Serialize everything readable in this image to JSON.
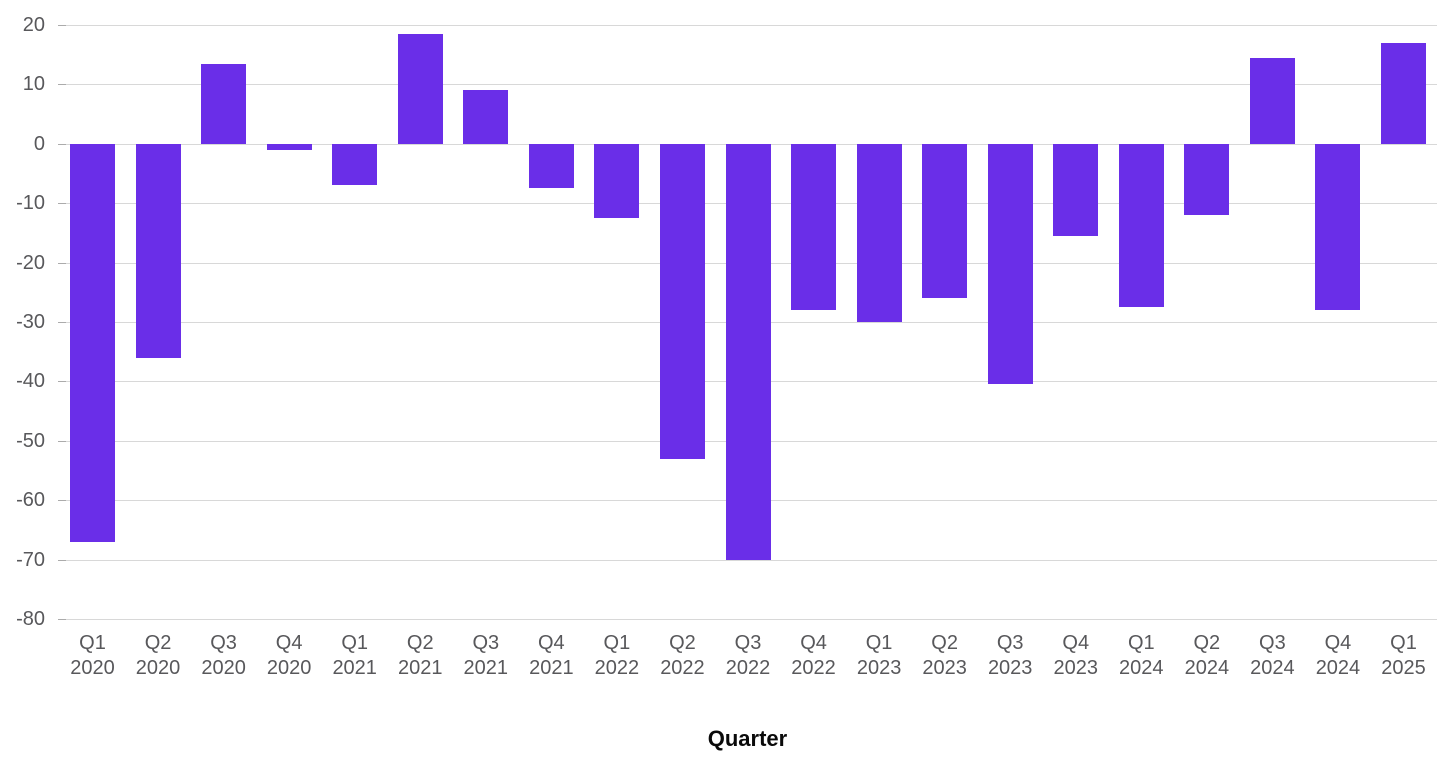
{
  "chart_data": {
    "type": "bar",
    "title": "",
    "xlabel": "Quarter",
    "ylabel": "",
    "categories": [
      "Q1 2020",
      "Q2 2020",
      "Q3 2020",
      "Q4 2020",
      "Q1 2021",
      "Q2 2021",
      "Q3 2021",
      "Q4 2021",
      "Q1 2022",
      "Q2 2022",
      "Q3 2022",
      "Q4 2022",
      "Q1 2023",
      "Q2 2023",
      "Q3 2023",
      "Q4 2023",
      "Q1 2024",
      "Q2 2024",
      "Q3 2024",
      "Q4 2024",
      "Q1 2025"
    ],
    "values": [
      -67,
      -36,
      13.5,
      -1,
      -7,
      18.5,
      9,
      -7.5,
      -12.5,
      -53,
      -70,
      -28,
      -30,
      -26,
      -40.5,
      -15.5,
      -27.5,
      -12,
      14.5,
      -28,
      17
    ],
    "ylim": [
      -80,
      20
    ],
    "yticks": [
      20,
      10,
      0,
      -10,
      -20,
      -30,
      -40,
      -50,
      -60,
      -70,
      -80
    ],
    "grid": true,
    "legend": "none",
    "bar_color": "#6A2EE8",
    "gridline_color": "#D8D8D8",
    "tick_label_color": "#58585B",
    "xlabel_color": "#0A0A0A",
    "background_color": "#FFFFFF"
  }
}
